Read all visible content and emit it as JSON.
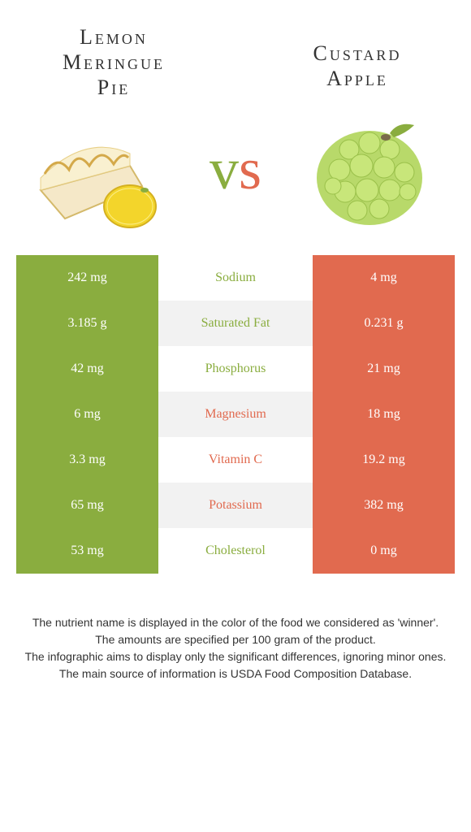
{
  "left_food": {
    "name_line1": "Lemon",
    "name_line2": "Meringue",
    "name_line3": "Pie"
  },
  "right_food": {
    "name_line1": "Custard",
    "name_line2": "Apple"
  },
  "vs": {
    "v": "v",
    "s": "s"
  },
  "colors": {
    "green": "#8aad3f",
    "orange": "#e16a4f",
    "row_alt": "#f2f2f2",
    "background": "#ffffff",
    "text": "#333333"
  },
  "rows": [
    {
      "left": "242 mg",
      "label": "Sodium",
      "right": "4 mg",
      "winner": "left"
    },
    {
      "left": "3.185 g",
      "label": "Saturated Fat",
      "right": "0.231 g",
      "winner": "left"
    },
    {
      "left": "42 mg",
      "label": "Phosphorus",
      "right": "21 mg",
      "winner": "left"
    },
    {
      "left": "6 mg",
      "label": "Magnesium",
      "right": "18 mg",
      "winner": "right"
    },
    {
      "left": "3.3 mg",
      "label": "Vitamin C",
      "right": "19.2 mg",
      "winner": "right"
    },
    {
      "left": "65 mg",
      "label": "Potassium",
      "right": "382 mg",
      "winner": "right"
    },
    {
      "left": "53 mg",
      "label": "Cholesterol",
      "right": "0 mg",
      "winner": "left"
    }
  ],
  "footer": {
    "l1": "The nutrient name is displayed in the color of the food we considered as 'winner'.",
    "l2": "The amounts are specified per 100 gram of the product.",
    "l3": "The infographic aims to display only the significant differences, ignoring minor ones.",
    "l4": "The main source of information is USDA Food Composition Database."
  }
}
